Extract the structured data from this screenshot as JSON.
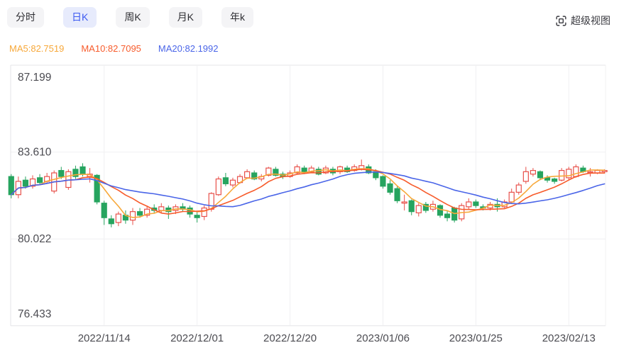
{
  "tabs": [
    {
      "id": "fenshi",
      "label": "分时",
      "active": false
    },
    {
      "id": "rik",
      "label": "日K",
      "active": true
    },
    {
      "id": "zhouk",
      "label": "周K",
      "active": false
    },
    {
      "id": "yuek",
      "label": "月K",
      "active": false
    },
    {
      "id": "niank",
      "label": "年k",
      "active": false
    }
  ],
  "super_view": {
    "label": "超级视图"
  },
  "legend": [
    {
      "label": "MA5:82.7519",
      "color": "#f7a83a"
    },
    {
      "label": "MA10:82.7095",
      "color": "#f75b2b"
    },
    {
      "label": "MA20:82.1992",
      "color": "#4a65e8"
    }
  ],
  "chart_data": {
    "type": "candlestick",
    "y_ticks": [
      "87.199",
      "83.610",
      "80.022",
      "76.433"
    ],
    "y_grid_values": [
      87.199,
      83.61,
      80.022,
      76.433
    ],
    "x_ticks": [
      {
        "label": "2022/11/14",
        "index": 13
      },
      {
        "label": "2022/12/01",
        "index": 26
      },
      {
        "label": "2022/12/20",
        "index": 39
      },
      {
        "label": "2023/01/06",
        "index": 52
      },
      {
        "label": "2023/01/25",
        "index": 65
      },
      {
        "label": "2023/02/13",
        "index": 78
      }
    ],
    "candle_format": [
      "open",
      "close",
      "low",
      "high"
    ],
    "candles": [
      [
        82.6,
        81.85,
        81.7,
        82.7
      ],
      [
        81.85,
        82.4,
        81.7,
        82.6
      ],
      [
        82.45,
        82.2,
        82.1,
        82.6
      ],
      [
        82.2,
        82.5,
        82.1,
        82.65
      ],
      [
        82.55,
        82.35,
        82.25,
        82.7
      ],
      [
        82.4,
        82.6,
        82.3,
        82.75
      ],
      [
        82.0,
        82.75,
        81.9,
        82.85
      ],
      [
        82.85,
        82.6,
        82.5,
        83.0
      ],
      [
        82.15,
        82.8,
        82.05,
        82.9
      ],
      [
        82.9,
        82.6,
        82.5,
        83.05
      ],
      [
        83.0,
        82.7,
        82.6,
        83.15
      ],
      [
        82.6,
        82.7,
        82.35,
        82.95
      ],
      [
        82.65,
        81.55,
        81.45,
        82.7
      ],
      [
        81.5,
        80.9,
        80.6,
        81.6
      ],
      [
        80.85,
        80.65,
        80.5,
        81.0
      ],
      [
        80.7,
        81.05,
        80.55,
        81.15
      ],
      [
        81.0,
        80.8,
        80.65,
        81.2
      ],
      [
        80.8,
        81.15,
        80.6,
        81.3
      ],
      [
        81.15,
        81.0,
        80.9,
        81.3
      ],
      [
        81.0,
        81.25,
        80.9,
        81.4
      ],
      [
        81.3,
        81.2,
        81.1,
        81.45
      ],
      [
        81.2,
        81.35,
        81.1,
        81.5
      ],
      [
        81.3,
        81.15,
        80.85,
        81.4
      ],
      [
        81.2,
        81.35,
        81.05,
        81.45
      ],
      [
        81.35,
        81.25,
        81.15,
        81.5
      ],
      [
        81.3,
        81.05,
        80.9,
        81.4
      ],
      [
        81.0,
        80.9,
        80.7,
        81.15
      ],
      [
        80.95,
        81.3,
        80.8,
        81.4
      ],
      [
        81.25,
        81.9,
        81.15,
        81.95
      ],
      [
        81.85,
        82.5,
        81.8,
        82.6
      ],
      [
        82.55,
        82.3,
        82.2,
        82.75
      ],
      [
        82.25,
        82.45,
        82.15,
        82.55
      ],
      [
        82.35,
        82.6,
        82.3,
        82.7
      ],
      [
        82.55,
        82.8,
        82.5,
        82.9
      ],
      [
        82.75,
        82.5,
        82.45,
        82.85
      ],
      [
        82.5,
        82.6,
        82.4,
        82.7
      ],
      [
        82.65,
        82.95,
        82.6,
        83.0
      ],
      [
        82.9,
        82.65,
        82.6,
        83.0
      ],
      [
        82.7,
        82.6,
        82.5,
        82.8
      ],
      [
        82.6,
        82.75,
        82.55,
        82.85
      ],
      [
        82.75,
        83.0,
        82.7,
        83.1
      ],
      [
        82.95,
        82.8,
        82.7,
        83.05
      ],
      [
        82.8,
        82.95,
        82.75,
        83.05
      ],
      [
        82.9,
        82.7,
        82.65,
        83.0
      ],
      [
        82.75,
        82.95,
        82.7,
        83.05
      ],
      [
        82.9,
        82.75,
        82.65,
        83.0
      ],
      [
        82.8,
        83.0,
        82.7,
        83.05
      ],
      [
        82.95,
        82.8,
        82.75,
        83.05
      ],
      [
        82.85,
        83.0,
        82.8,
        83.1
      ],
      [
        82.9,
        83.05,
        82.85,
        83.3
      ],
      [
        83.0,
        82.75,
        82.7,
        83.1
      ],
      [
        82.8,
        82.55,
        82.45,
        82.9
      ],
      [
        82.6,
        82.2,
        82.1,
        82.65
      ],
      [
        82.3,
        81.95,
        81.85,
        82.45
      ],
      [
        82.1,
        81.6,
        81.5,
        82.2
      ],
      [
        81.5,
        81.55,
        81.2,
        81.85
      ],
      [
        81.6,
        81.15,
        81.0,
        81.65
      ],
      [
        81.1,
        81.4,
        80.95,
        81.5
      ],
      [
        81.45,
        81.2,
        81.1,
        81.55
      ],
      [
        81.25,
        81.45,
        81.15,
        81.6
      ],
      [
        81.4,
        81.0,
        80.9,
        81.45
      ],
      [
        81.05,
        80.9,
        80.75,
        81.2
      ],
      [
        81.3,
        80.8,
        80.7,
        81.35
      ],
      [
        80.85,
        81.4,
        80.75,
        81.5
      ],
      [
        81.35,
        81.55,
        81.25,
        81.7
      ],
      [
        81.55,
        81.4,
        81.3,
        81.65
      ],
      [
        81.35,
        81.3,
        81.2,
        81.45
      ],
      [
        81.3,
        81.45,
        81.2,
        81.55
      ],
      [
        81.45,
        81.35,
        81.15,
        81.7
      ],
      [
        81.35,
        81.55,
        81.3,
        81.65
      ],
      [
        81.55,
        81.95,
        81.5,
        82.1
      ],
      [
        81.95,
        82.25,
        81.85,
        82.35
      ],
      [
        82.4,
        82.8,
        82.3,
        83.0
      ],
      [
        82.7,
        82.85,
        82.6,
        82.95
      ],
      [
        82.8,
        82.55,
        82.45,
        82.85
      ],
      [
        82.55,
        82.45,
        82.35,
        82.65
      ],
      [
        82.5,
        82.4,
        82.3,
        82.55
      ],
      [
        82.45,
        82.85,
        82.4,
        82.95
      ],
      [
        82.55,
        82.9,
        82.45,
        83.0
      ],
      [
        82.6,
        83.0,
        82.55,
        83.1
      ],
      [
        82.95,
        82.8,
        82.75,
        83.05
      ],
      [
        82.78,
        82.8,
        82.6,
        82.95
      ],
      [
        82.75,
        82.85,
        82.7,
        82.9
      ],
      [
        82.8,
        82.85,
        82.75,
        82.9
      ]
    ],
    "up_color": "#e8504a",
    "down_color": "#26a45f",
    "ma": [
      {
        "period": 5,
        "color": "#f7a83a"
      },
      {
        "period": 10,
        "color": "#f75b2b"
      },
      {
        "period": 20,
        "color": "#4a65e8"
      }
    ],
    "grid_color": "#f0f0f2",
    "border_color": "#e4e4e7",
    "axis_text_color": "#4c4c52",
    "legend_values": {
      "MA5": "82.7519",
      "MA10": "82.7095",
      "MA20": "82.1992"
    }
  }
}
